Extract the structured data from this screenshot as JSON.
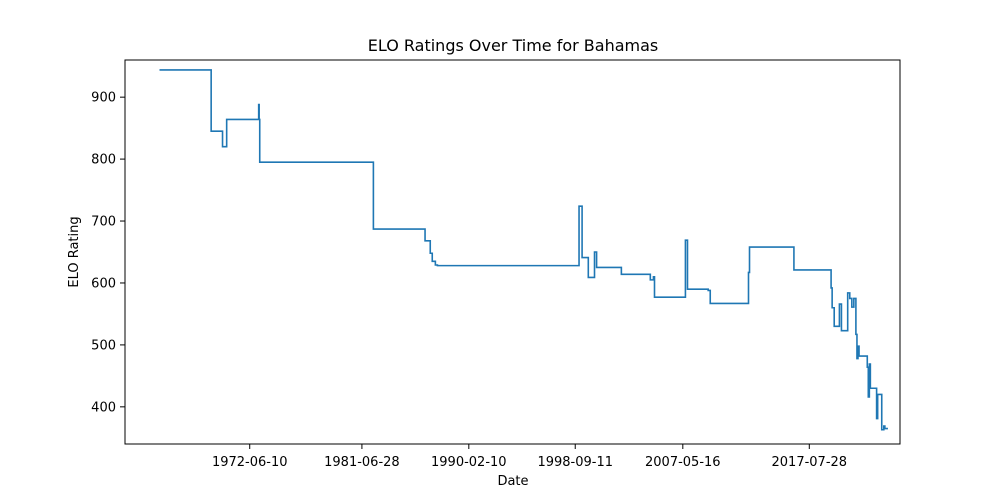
{
  "chart_data": {
    "type": "line",
    "title": "ELO Ratings Over Time for Bahamas",
    "xlabel": "Date",
    "ylabel": "ELO Rating",
    "x_ticks": [
      "1972-06-10",
      "1981-06-28",
      "1990-02-10",
      "1998-09-11",
      "2007-05-16",
      "2017-07-28"
    ],
    "y_ticks": [
      "400",
      "500",
      "600",
      "700",
      "800",
      "900"
    ],
    "xlim": [
      "1962-05-20",
      "2024-11-20"
    ],
    "ylim": [
      340,
      960
    ],
    "grid": false,
    "series": [
      {
        "color": "#1f77b4",
        "step": true,
        "points": [
          [
            "1965-03-01",
            944
          ],
          [
            "1969-05-01",
            845
          ],
          [
            "1970-04-01",
            820
          ],
          [
            "1970-08-01",
            864
          ],
          [
            "1973-03-01",
            888
          ],
          [
            "1973-03-15",
            864
          ],
          [
            "1973-04-01",
            795
          ],
          [
            "1982-06-01",
            687
          ],
          [
            "1986-08-01",
            668
          ],
          [
            "1987-01-01",
            648
          ],
          [
            "1987-03-01",
            635
          ],
          [
            "1987-06-01",
            629
          ],
          [
            "1987-08-01",
            628
          ],
          [
            "1999-01-01",
            724
          ],
          [
            "1999-04-01",
            641
          ],
          [
            "1999-10-01",
            609
          ],
          [
            "2000-04-01",
            650
          ],
          [
            "2000-06-01",
            625
          ],
          [
            "2002-06-01",
            614
          ],
          [
            "2004-10-01",
            605
          ],
          [
            "2005-01-01",
            610
          ],
          [
            "2005-02-01",
            577
          ],
          [
            "2007-08-01",
            669
          ],
          [
            "2007-10-01",
            590
          ],
          [
            "2009-06-01",
            588
          ],
          [
            "2009-08-01",
            567
          ],
          [
            "2012-09-01",
            617
          ],
          [
            "2012-10-01",
            658
          ],
          [
            "2016-05-01",
            621
          ],
          [
            "2019-05-01",
            592
          ],
          [
            "2019-06-01",
            560
          ],
          [
            "2019-08-01",
            530
          ],
          [
            "2020-01-01",
            566
          ],
          [
            "2020-03-01",
            523
          ],
          [
            "2020-09-01",
            584
          ],
          [
            "2020-11-01",
            575
          ],
          [
            "2021-01-01",
            561
          ],
          [
            "2021-03-01",
            575
          ],
          [
            "2021-05-01",
            517
          ],
          [
            "2021-06-01",
            478
          ],
          [
            "2021-07-01",
            498
          ],
          [
            "2021-08-01",
            482
          ],
          [
            "2022-04-01",
            464
          ],
          [
            "2022-05-01",
            416
          ],
          [
            "2022-06-01",
            469
          ],
          [
            "2022-07-01",
            430
          ],
          [
            "2023-01-01",
            381
          ],
          [
            "2023-02-01",
            420
          ],
          [
            "2023-06-01",
            363
          ],
          [
            "2023-08-01",
            369
          ],
          [
            "2023-09-01",
            365
          ],
          [
            "2023-12-01",
            365
          ]
        ]
      }
    ]
  }
}
